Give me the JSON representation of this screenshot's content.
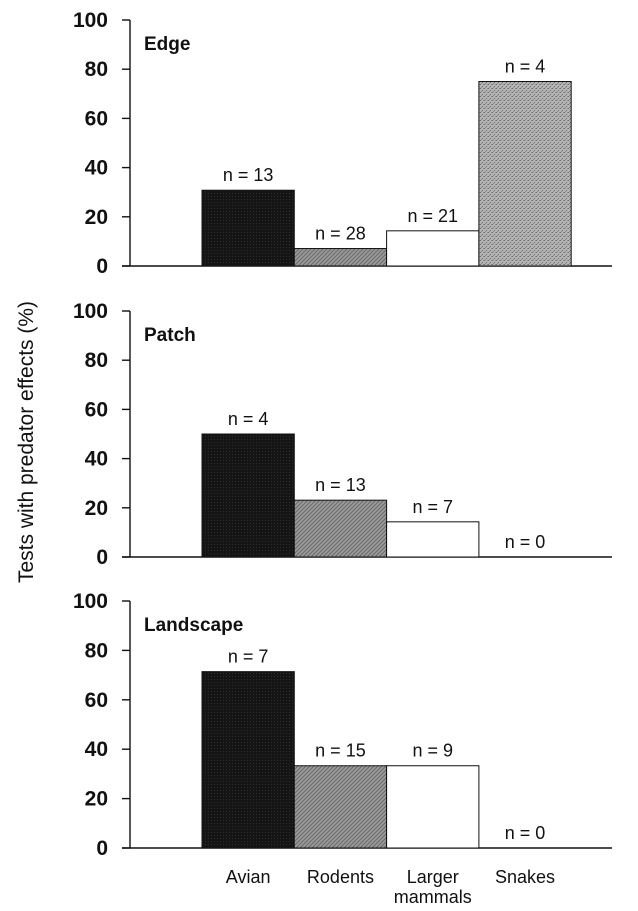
{
  "chart_data": {
    "type": "bar",
    "ylabel": "Tests with predator effects (%)",
    "categories": [
      "Avian",
      "Rodents",
      "Larger mammals",
      "Snakes"
    ],
    "category_label_lines": [
      [
        "Avian"
      ],
      [
        "Rodents"
      ],
      [
        "Larger",
        "mammals"
      ],
      [
        "Snakes"
      ]
    ],
    "category_styles": [
      "solid-black",
      "hatched-gray",
      "white",
      "stippled-gray"
    ],
    "colors": {
      "Avian": "#141414",
      "Rodents": "#8f8f8f",
      "Larger mammals": "#ffffff",
      "Snakes": "#a9a9a9"
    },
    "ylim": [
      0,
      100
    ],
    "yticks": [
      0,
      20,
      40,
      60,
      80,
      100
    ],
    "panels": [
      {
        "title": "Edge",
        "values": [
          30.8,
          7.1,
          14.3,
          75
        ],
        "n_labels": [
          "n = 13",
          "n = 28",
          "n = 21",
          "n = 4"
        ]
      },
      {
        "title": "Patch",
        "values": [
          50,
          23.1,
          14.3,
          0
        ],
        "n_labels": [
          "n = 4",
          "n = 13",
          "n = 7",
          "n = 0"
        ]
      },
      {
        "title": "Landscape",
        "values": [
          71.4,
          33.3,
          33.3,
          0
        ],
        "n_labels": [
          "n = 7",
          "n = 15",
          "n = 9",
          "n = 0"
        ]
      }
    ]
  }
}
